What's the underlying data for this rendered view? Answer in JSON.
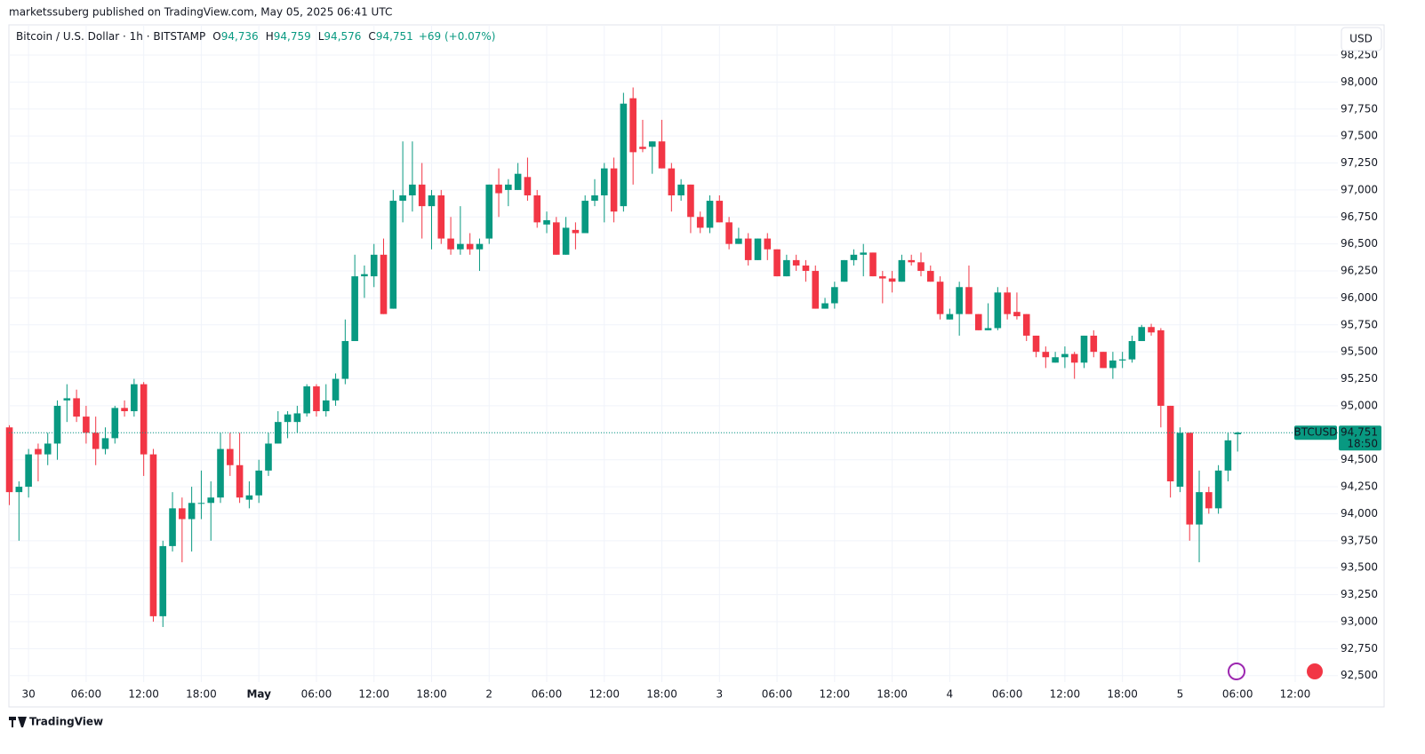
{
  "caption": "marketssuberg published on TradingView.com, May 05, 2025 06:41 UTC",
  "footer": "TradingView",
  "chart_data": {
    "type": "candlestick",
    "symbol": "Bitcoin / U.S. Dollar · 1h · BITSTAMP",
    "legend": [
      {
        "key": "O",
        "value": "94,736"
      },
      {
        "key": "H",
        "value": "94,759"
      },
      {
        "key": "L",
        "value": "94,576"
      },
      {
        "key": "C",
        "value": "94,751"
      }
    ],
    "change": "+69 (+0.07%)",
    "currency": "USD",
    "price_tag": {
      "symbol": "BTCUSD",
      "price": "94,751",
      "countdown": "18:50"
    },
    "up_color": "#089981",
    "down_color": "#f23645",
    "grid": true,
    "open": [
      94800,
      94200,
      94250,
      94600,
      94550,
      94650,
      95050,
      95070,
      94900,
      94750,
      94600,
      94700,
      94980,
      94950,
      95200,
      94550,
      93050,
      93700,
      94050,
      93950,
      94100,
      94100,
      94150,
      94600,
      94450,
      94130,
      94170,
      94400,
      94650,
      94850,
      94850,
      94930,
      95180,
      94950,
      95050,
      95250,
      95600,
      96200,
      96200,
      96400,
      95900,
      96900,
      96950,
      97050,
      96850,
      96950,
      96550,
      96450,
      96500,
      96450,
      96550,
      97050,
      97000,
      97000,
      97120,
      96950,
      96680,
      96700,
      96400,
      96630,
      96600,
      96900,
      96950,
      97200,
      96850,
      97850,
      97400,
      97400,
      97450,
      97200,
      96950,
      97050,
      96750,
      96650,
      96900,
      96700,
      96500,
      96550,
      96350,
      96550,
      96450,
      96200,
      96350,
      96300,
      96250,
      95900,
      95950,
      96150,
      96350,
      96400,
      96420,
      96200,
      96180,
      96150,
      96350,
      96330,
      96250,
      96150,
      95800,
      95850,
      96100,
      95850,
      95700,
      95720,
      96050,
      95870,
      95850,
      95650,
      95500,
      95400,
      95450,
      95480,
      95400,
      95650,
      95500,
      95350,
      95420,
      95430,
      95600,
      95730,
      95700,
      95000,
      94250,
      94750,
      93900,
      94200,
      94050,
      94400,
      94736
    ],
    "high": [
      94820,
      94300,
      94600,
      94650,
      94750,
      95050,
      95200,
      95150,
      95000,
      94900,
      94800,
      95000,
      95050,
      95250,
      95220,
      94600,
      93750,
      94200,
      94150,
      94250,
      94400,
      94300,
      94750,
      94750,
      94750,
      94300,
      94500,
      94750,
      94950,
      94950,
      95000,
      95200,
      95200,
      95200,
      95300,
      95800,
      96400,
      96300,
      96500,
      96550,
      97000,
      97450,
      97450,
      97250,
      97000,
      97000,
      96750,
      96850,
      96600,
      96550,
      97050,
      97200,
      97100,
      97250,
      97300,
      97000,
      96800,
      96750,
      96750,
      96700,
      96950,
      97100,
      97250,
      97300,
      97900,
      97950,
      97650,
      97450,
      97650,
      97250,
      97100,
      97050,
      96800,
      96950,
      96950,
      96750,
      96650,
      96600,
      96550,
      96600,
      96450,
      96400,
      96400,
      96350,
      96300,
      96000,
      96150,
      96350,
      96450,
      96500,
      96420,
      96250,
      96250,
      96400,
      96400,
      96420,
      96300,
      96200,
      95900,
      96150,
      96300,
      95850,
      95950,
      96100,
      96100,
      96050,
      95850,
      95650,
      95550,
      95500,
      95550,
      95500,
      95650,
      95700,
      95500,
      95500,
      95500,
      95650,
      95750,
      95760,
      95720,
      95000,
      94800,
      94750,
      94400,
      94250,
      94450,
      94750,
      94759
    ],
    "low": [
      94080,
      93750,
      94150,
      94300,
      94450,
      94500,
      94850,
      94850,
      94650,
      94450,
      94550,
      94650,
      94900,
      94900,
      94350,
      93000,
      92950,
      93650,
      93550,
      93650,
      93950,
      93750,
      94100,
      94350,
      94100,
      94050,
      94100,
      94350,
      94650,
      94700,
      94750,
      94900,
      94900,
      94900,
      95000,
      95200,
      95600,
      96000,
      96100,
      95850,
      95900,
      96700,
      96800,
      96550,
      96450,
      96500,
      96400,
      96400,
      96400,
      96250,
      96500,
      96750,
      96850,
      97000,
      96900,
      96650,
      96600,
      96400,
      96400,
      96450,
      96600,
      96850,
      96700,
      96700,
      96800,
      97050,
      97350,
      97150,
      97200,
      96800,
      96900,
      96600,
      96600,
      96600,
      96700,
      96450,
      96500,
      96300,
      96350,
      96350,
      96200,
      96200,
      96250,
      96150,
      95900,
      95900,
      95900,
      96150,
      96300,
      96200,
      96200,
      95950,
      96050,
      96150,
      96300,
      96200,
      96150,
      95800,
      95800,
      95650,
      95850,
      95700,
      95700,
      95700,
      95800,
      95800,
      95600,
      95450,
      95350,
      95400,
      95350,
      95250,
      95350,
      95450,
      95350,
      95250,
      95350,
      95400,
      95600,
      95650,
      94800,
      94150,
      94200,
      93750,
      93550,
      94000,
      94000,
      94300,
      94576
    ],
    "close": [
      94200,
      94250,
      94550,
      94550,
      94650,
      95000,
      95070,
      94900,
      94750,
      94600,
      94700,
      94980,
      94950,
      95200,
      94550,
      93050,
      93700,
      94050,
      93950,
      94100,
      94100,
      94150,
      94600,
      94450,
      94150,
      94170,
      94400,
      94650,
      94850,
      94920,
      94930,
      95180,
      94950,
      95050,
      95250,
      95600,
      96200,
      96220,
      96400,
      95850,
      96900,
      96950,
      97050,
      96850,
      96950,
      96550,
      96450,
      96500,
      96450,
      96500,
      97050,
      96970,
      97050,
      97150,
      96950,
      96700,
      96720,
      96400,
      96650,
      96600,
      96900,
      96950,
      97200,
      96800,
      97800,
      97350,
      97380,
      97450,
      97200,
      96950,
      97050,
      96750,
      96650,
      96900,
      96700,
      96500,
      96550,
      96350,
      96550,
      96450,
      96200,
      96350,
      96300,
      96250,
      95900,
      95950,
      96100,
      96350,
      96400,
      96420,
      96200,
      96180,
      96150,
      96350,
      96330,
      96250,
      96150,
      95850,
      95850,
      96100,
      95850,
      95700,
      95720,
      96050,
      95850,
      95830,
      95650,
      95500,
      95450,
      95450,
      95480,
      95400,
      95650,
      95500,
      95350,
      95420,
      95430,
      95600,
      95730,
      95680,
      95000,
      94300,
      94750,
      93900,
      94200,
      94050,
      94400,
      94680,
      94751
    ],
    "xlim": [
      -0.05,
      138.45
    ],
    "xticks": [
      {
        "value": 2,
        "label": "30"
      },
      {
        "value": 8,
        "label": "06:00"
      },
      {
        "value": 14,
        "label": "12:00"
      },
      {
        "value": 20,
        "label": "18:00"
      },
      {
        "value": 26,
        "label": "May"
      },
      {
        "value": 32,
        "label": "06:00"
      },
      {
        "value": 38,
        "label": "12:00"
      },
      {
        "value": 44,
        "label": "18:00"
      },
      {
        "value": 50,
        "label": "2"
      },
      {
        "value": 56,
        "label": "06:00"
      },
      {
        "value": 62,
        "label": "12:00"
      },
      {
        "value": 68,
        "label": "18:00"
      },
      {
        "value": 74,
        "label": "3"
      },
      {
        "value": 80,
        "label": "06:00"
      },
      {
        "value": 86,
        "label": "12:00"
      },
      {
        "value": 92,
        "label": "18:00"
      },
      {
        "value": 98,
        "label": "4"
      },
      {
        "value": 104,
        "label": "06:00"
      },
      {
        "value": 110,
        "label": "12:00"
      },
      {
        "value": 116,
        "label": "18:00"
      },
      {
        "value": 122,
        "label": "5"
      },
      {
        "value": 128,
        "label": "06:00"
      },
      {
        "value": 134,
        "label": "12:00"
      }
    ],
    "ylim": [
      92440,
      98530
    ],
    "yticks": [
      {
        "value": 92500,
        "label": "92,500"
      },
      {
        "value": 92750,
        "label": "92,750"
      },
      {
        "value": 93000,
        "label": "93,000"
      },
      {
        "value": 93250,
        "label": "93,250"
      },
      {
        "value": 93500,
        "label": "93,500"
      },
      {
        "value": 93750,
        "label": "93,750"
      },
      {
        "value": 94000,
        "label": "94,000"
      },
      {
        "value": 94250,
        "label": "94,250"
      },
      {
        "value": 94500,
        "label": "94,500"
      },
      {
        "value": 94750,
        "label": "94,750"
      },
      {
        "value": 95000,
        "label": "95,000"
      },
      {
        "value": 95250,
        "label": "95,250"
      },
      {
        "value": 95500,
        "label": "95,500"
      },
      {
        "value": 95750,
        "label": "95,750"
      },
      {
        "value": 96000,
        "label": "96,000"
      },
      {
        "value": 96250,
        "label": "96,250"
      },
      {
        "value": 96500,
        "label": "96,500"
      },
      {
        "value": 96750,
        "label": "96,750"
      },
      {
        "value": 97000,
        "label": "97,000"
      },
      {
        "value": 97250,
        "label": "97,250"
      },
      {
        "value": 97500,
        "label": "97,500"
      },
      {
        "value": 97750,
        "label": "97,750"
      },
      {
        "value": 98000,
        "label": "98,000"
      },
      {
        "value": 98250,
        "label": "98,250"
      }
    ]
  }
}
